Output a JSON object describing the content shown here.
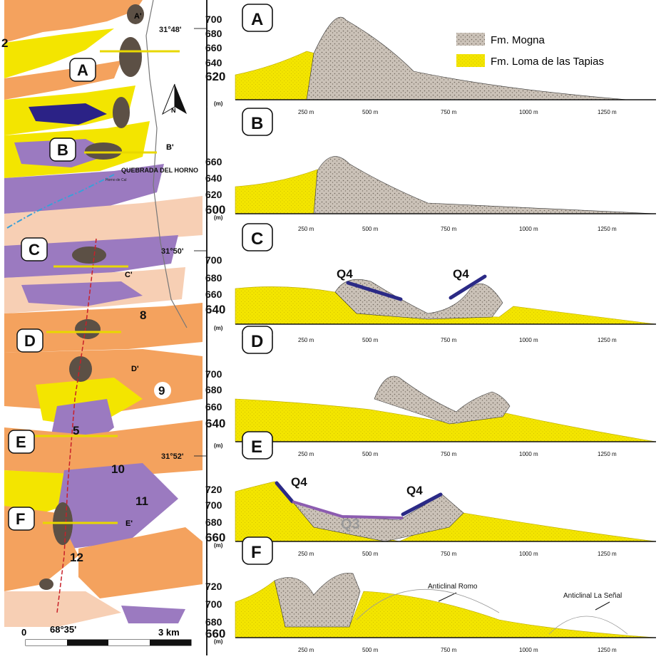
{
  "map": {
    "coords": [
      "31°48'",
      "31°50'",
      "31°52'"
    ],
    "longitude": "68°35'",
    "scale_start": "0",
    "scale_end": "3 km",
    "locality": "QUEBRADA DEL HORNO",
    "locality_small": "Horno de Cal",
    "north": "N",
    "section_letters": [
      "A",
      "B",
      "C",
      "D",
      "E",
      "F"
    ],
    "section_ends": [
      "A'",
      "B'",
      "C'",
      "D'",
      "E'"
    ],
    "site_numbers": [
      "2",
      "5",
      "8",
      "9",
      "10",
      "11",
      "12"
    ]
  },
  "legend": {
    "mogna": "Fm. Mogna",
    "tapias": "Fm. Loma de las Tapias"
  },
  "colors": {
    "mogna": "#c9bfb4",
    "tapias": "#f2e200",
    "tapias_dark": "#d4c400",
    "q4": "#2b2a86",
    "q3": "#8c5cb0",
    "orange": "#f4a25e",
    "purple": "#9b7ac0",
    "blue": "#2b2286",
    "pale": "#f7cfb4",
    "brown": "#5c5045"
  },
  "profiles": [
    {
      "letter": "A",
      "y_labels": [
        "700",
        "680",
        "660",
        "640",
        "620"
      ],
      "unit": "(m)"
    },
    {
      "letter": "B",
      "y_labels": [
        "660",
        "640",
        "620",
        "600"
      ],
      "unit": "(m)"
    },
    {
      "letter": "C",
      "y_labels": [
        "700",
        "680",
        "660",
        "640"
      ],
      "unit": "(m)"
    },
    {
      "letter": "D",
      "y_labels": [
        "700",
        "680",
        "660",
        "640"
      ],
      "unit": "(m)"
    },
    {
      "letter": "E",
      "y_labels": [
        "720",
        "700",
        "680",
        "660"
      ],
      "unit": "(m)"
    },
    {
      "letter": "F",
      "y_labels": [
        "720",
        "700",
        "680",
        "660"
      ],
      "unit": "(m)"
    }
  ],
  "x_ticks": [
    "250 m",
    "500 m",
    "750 m",
    "1000 m",
    "1250 m"
  ],
  "units": {
    "q4": "Q4",
    "q3": "Q3"
  },
  "anticlines": {
    "romo": "Anticlinal Romo",
    "senal": "Anticlinal La Señal"
  }
}
